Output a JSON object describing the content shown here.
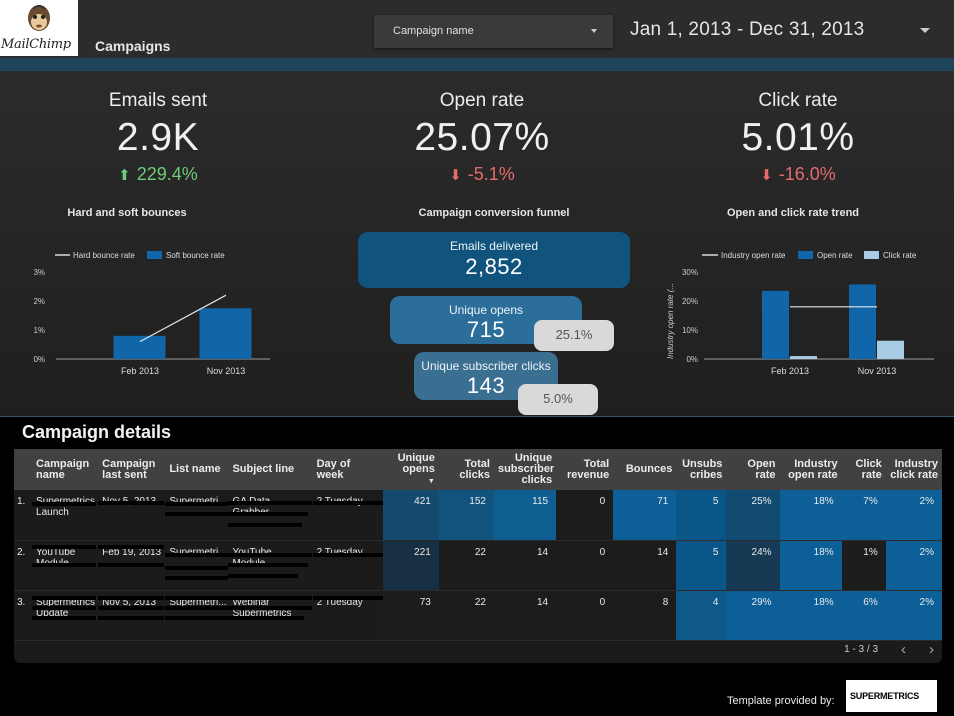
{
  "header": {
    "logo_text": "MailChimp",
    "page_title": "Campaigns",
    "campaign_filter_label": "Campaign name",
    "date_range": "Jan 1, 2013 - Dec 31, 2013"
  },
  "kpis": [
    {
      "title": "Emails sent",
      "value": "2.9K",
      "delta": "229.4%",
      "direction": "up"
    },
    {
      "title": "Open rate",
      "value": "25.07%",
      "delta": "-5.1%",
      "direction": "down"
    },
    {
      "title": "Click rate",
      "value": "5.01%",
      "delta": "-16.0%",
      "direction": "down"
    }
  ],
  "colors": {
    "positive": "#6ecb76",
    "negative": "#e66b6b",
    "bar_dark": "#1066a8",
    "bar_light": "#a9cde6",
    "funnel_1": "#10547e",
    "funnel_2": "#2a6e99",
    "funnel_3": "#3a6f92"
  },
  "funnel": {
    "title": "Campaign conversion funnel",
    "steps": [
      {
        "label": "Emails delivered",
        "value": "2,852"
      },
      {
        "label": "Unique opens",
        "value": "715",
        "pct": "25.1%"
      },
      {
        "label": "Unique subscriber clicks",
        "value": "143",
        "pct": "5.0%"
      }
    ]
  },
  "chart_data": [
    {
      "type": "bar",
      "title": "Hard and soft bounces",
      "categories": [
        "Feb 2013",
        "Nov 2013"
      ],
      "series": [
        {
          "name": "Hard bounce rate",
          "kind": "line",
          "values": [
            0.6,
            2.2
          ]
        },
        {
          "name": "Soft bounce rate",
          "kind": "bar",
          "values": [
            0.8,
            1.75
          ]
        }
      ],
      "yticks": [
        "0%",
        "1%",
        "2%",
        "3%"
      ],
      "ylim": [
        0,
        3
      ],
      "legend": "top-left"
    },
    {
      "type": "bar",
      "title": "Open and click rate trend",
      "categories": [
        "Feb 2013",
        "Nov 2013"
      ],
      "series": [
        {
          "name": "Industry open rate",
          "kind": "line",
          "values": [
            18,
            18
          ]
        },
        {
          "name": "Open rate",
          "kind": "bar",
          "values": [
            23.5,
            25.7
          ]
        },
        {
          "name": "Click rate",
          "kind": "bar",
          "values": [
            1,
            6.3
          ]
        }
      ],
      "yticks": [
        "0%",
        "10%",
        "20%",
        "30%"
      ],
      "ylim": [
        0,
        30
      ],
      "ylabel": "Industry open rate (...",
      "legend": "top-left"
    }
  ],
  "details": {
    "title": "Campaign details",
    "columns": [
      "Campaign name",
      "Campaign last sent",
      "List name",
      "Subject line",
      "Day of week",
      "Unique opens",
      "Total clicks",
      "Unique subscriber clicks",
      "Total revenue",
      "Bounces",
      "Unsubs cribes",
      "Open rate",
      "Industry open rate",
      "Click rate",
      "Industry click rate"
    ],
    "sort_indicator": "▼",
    "rows": [
      {
        "num": "1.",
        "name": "Supermetrics Launch",
        "last_sent": "Nov 5, 2013",
        "list": "Supermetri...",
        "subject": "GA Data Grabber...",
        "day": "2 Tuesday",
        "unique_opens": "421",
        "total_clicks": "152",
        "unique_clicks": "115",
        "revenue": "0",
        "bounces": "71",
        "unsubs": "5",
        "open_rate": "25%",
        "ind_open": "18%",
        "click_rate": "7%",
        "ind_click": "2%"
      },
      {
        "num": "2.",
        "name": "YouTube Module",
        "last_sent": "Feb 19, 2013",
        "list": "Supermetri...",
        "subject": "YouTube Module...",
        "day": "2 Tuesday",
        "unique_opens": "221",
        "total_clicks": "22",
        "unique_clicks": "14",
        "revenue": "0",
        "bounces": "14",
        "unsubs": "5",
        "open_rate": "24%",
        "ind_open": "18%",
        "click_rate": "1%",
        "ind_click": "2%"
      },
      {
        "num": "3.",
        "name": "Supermetrics Update",
        "last_sent": "Nov 5, 2013",
        "list": "Supermetri...",
        "subject": "Webinar Supermetrics",
        "day": "2 Tuesday",
        "unique_opens": "73",
        "total_clicks": "22",
        "unique_clicks": "14",
        "revenue": "0",
        "bounces": "8",
        "unsubs": "4",
        "open_rate": "29%",
        "ind_open": "18%",
        "click_rate": "6%",
        "ind_click": "2%"
      }
    ],
    "pager": "1 - 3 / 3",
    "prev_label": "‹",
    "next_label": "›"
  },
  "footer": {
    "provided_by": "Template provided by:",
    "brand": "SUPERMETRICS"
  }
}
